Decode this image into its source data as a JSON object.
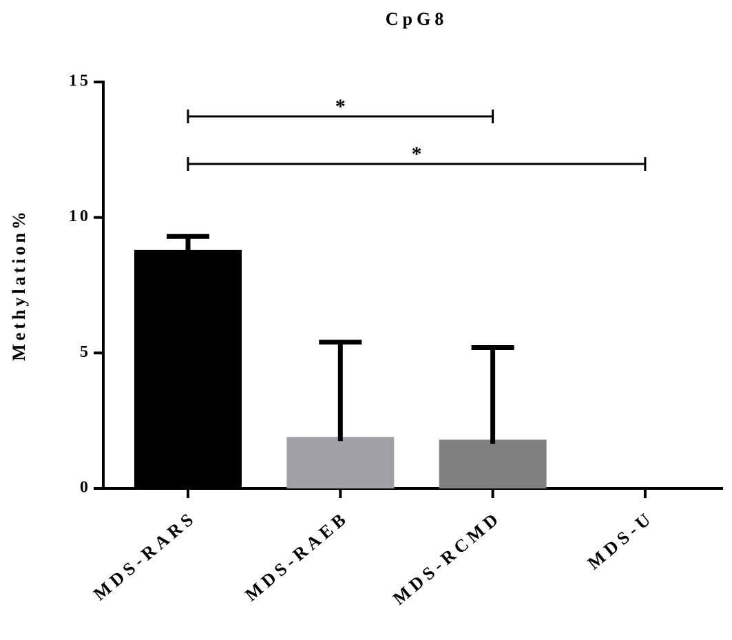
{
  "chart_data": {
    "type": "bar",
    "title": "CpG8",
    "y_label": "Methylation%",
    "categories": [
      "MDS-RARS",
      "MDS-RAEB",
      "MDS-RCMD",
      "MDS-U"
    ],
    "values": [
      8.8,
      1.9,
      1.8,
      0
    ],
    "errors": [
      0.5,
      3.5,
      3.4,
      null
    ],
    "colors": [
      "#000000",
      "#a0a0a6",
      "#808080",
      "#ffffff"
    ],
    "ylim": [
      0,
      15
    ],
    "yticks": [
      0,
      5,
      10,
      15
    ],
    "annotations": [
      {
        "text": "*",
        "from": "MDS-RARS",
        "to": "MDS-RCMD"
      },
      {
        "text": "*",
        "from": "MDS-RARS",
        "to": "MDS-U"
      }
    ]
  }
}
